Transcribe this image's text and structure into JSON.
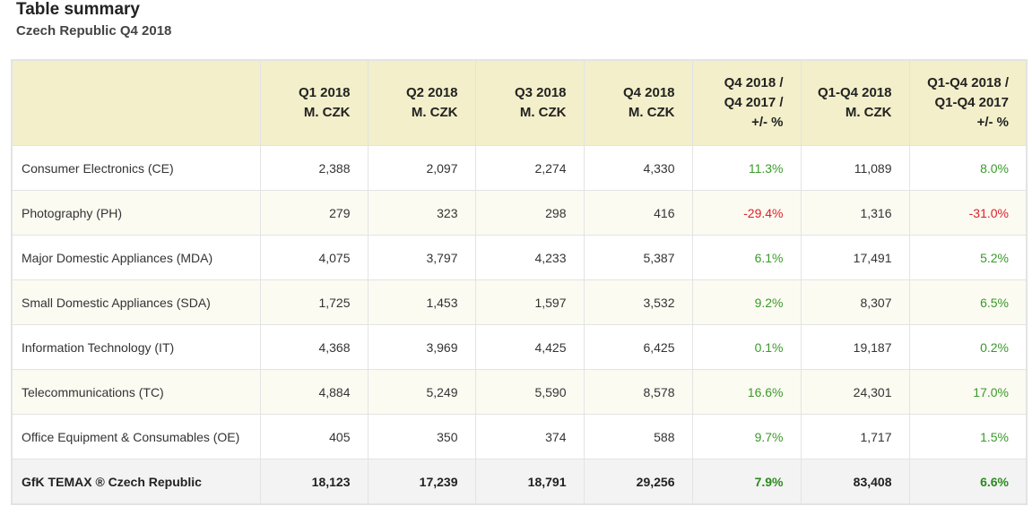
{
  "header": {
    "title": "Table summary",
    "subtitle": "Czech Republic Q4 2018"
  },
  "colors": {
    "header_bg": "#f2efca",
    "positive": "#3a9a2a",
    "negative": "#e0202a"
  },
  "table": {
    "columns": [
      {
        "line1": "",
        "line2": "",
        "line3": ""
      },
      {
        "line1": "Q1 2018",
        "line2": "M. CZK",
        "line3": ""
      },
      {
        "line1": "Q2 2018",
        "line2": "M. CZK",
        "line3": ""
      },
      {
        "line1": "Q3 2018",
        "line2": "M. CZK",
        "line3": ""
      },
      {
        "line1": "Q4 2018",
        "line2": "M. CZK",
        "line3": ""
      },
      {
        "line1": "Q4 2018 /",
        "line2": "Q4 2017 /",
        "line3": "+/- %"
      },
      {
        "line1": "Q1-Q4 2018",
        "line2": "M. CZK",
        "line3": ""
      },
      {
        "line1": "Q1-Q4 2018 /",
        "line2": "Q1-Q4 2017",
        "line3": "+/- %"
      }
    ],
    "rows": [
      [
        "Consumer Electronics (CE)",
        "2,388",
        "2,097",
        "2,274",
        "4,330",
        "11.3%",
        "11,089",
        "8.0%"
      ],
      [
        "Photography (PH)",
        "279",
        "323",
        "298",
        "416",
        "-29.4%",
        "1,316",
        "-31.0%"
      ],
      [
        "Major Domestic Appliances (MDA)",
        "4,075",
        "3,797",
        "4,233",
        "5,387",
        "6.1%",
        "17,491",
        "5.2%"
      ],
      [
        "Small Domestic Appliances (SDA)",
        "1,725",
        "1,453",
        "1,597",
        "3,532",
        "9.2%",
        "8,307",
        "6.5%"
      ],
      [
        "Information Technology (IT)",
        "4,368",
        "3,969",
        "4,425",
        "6,425",
        "0.1%",
        "19,187",
        "0.2%"
      ],
      [
        "Telecommunications (TC)",
        "4,884",
        "5,249",
        "5,590",
        "8,578",
        "16.6%",
        "24,301",
        "17.0%"
      ],
      [
        "Office Equipment & Consumables (OE)",
        "405",
        "350",
        "374",
        "588",
        "9.7%",
        "1,717",
        "1.5%"
      ],
      [
        "GfK TEMAX ® Czech Republic",
        "18,123",
        "17,239",
        "18,791",
        "29,256",
        "7.9%",
        "83,408",
        "6.6%"
      ]
    ]
  }
}
